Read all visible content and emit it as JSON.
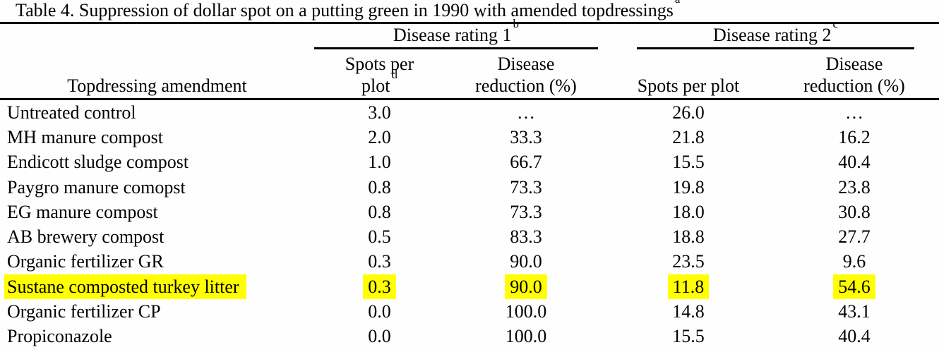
{
  "title": {
    "text": "Table 4. Suppression of dollar spot on a putting green in 1990 with amended topdressings",
    "footnote_mark": "a"
  },
  "table": {
    "groups": [
      {
        "label": "Disease rating 1",
        "footnote_mark": "b"
      },
      {
        "label": "Disease rating 2",
        "footnote_mark": "c"
      }
    ],
    "headers": {
      "amendment": "Topdressing amendment",
      "spots1_line1": "Spots per",
      "spots1_line2": "plot",
      "spots1_footnote_mark": "d",
      "reduction1_line1": "Disease",
      "reduction1_line2": "reduction (%)",
      "spots2": "Spots per plot",
      "reduction2_line1": "Disease",
      "reduction2_line2": "reduction (%)"
    },
    "rows": [
      {
        "amendment": "Untreated control",
        "spots1": "3.0",
        "reduction1": "…",
        "spots2": "26.0",
        "reduction2": "…",
        "highlighted": false
      },
      {
        "amendment": "MH manure compost",
        "spots1": "2.0",
        "reduction1": "33.3",
        "spots2": "21.8",
        "reduction2": "16.2",
        "highlighted": false
      },
      {
        "amendment": "Endicott sludge compost",
        "spots1": "1.0",
        "reduction1": "66.7",
        "spots2": "15.5",
        "reduction2": "40.4",
        "highlighted": false
      },
      {
        "amendment": "Paygro manure comopst",
        "spots1": "0.8",
        "reduction1": "73.3",
        "spots2": "19.8",
        "reduction2": "23.8",
        "highlighted": false
      },
      {
        "amendment": "EG manure compost",
        "spots1": "0.8",
        "reduction1": "73.3",
        "spots2": "18.0",
        "reduction2": "30.8",
        "highlighted": false
      },
      {
        "amendment": "AB brewery compost",
        "spots1": "0.5",
        "reduction1": "83.3",
        "spots2": "18.8",
        "reduction2": "27.7",
        "highlighted": false
      },
      {
        "amendment": "Organic fertilizer GR",
        "spots1": "0.3",
        "reduction1": "90.0",
        "spots2": "23.5",
        "reduction2": "9.6",
        "highlighted": false
      },
      {
        "amendment": "Sustane composted turkey litter",
        "spots1": "0.3",
        "reduction1": "90.0",
        "spots2": "11.8",
        "reduction2": "54.6",
        "highlighted": true
      },
      {
        "amendment": "Organic fertilizer CP",
        "spots1": "0.0",
        "reduction1": "100.0",
        "spots2": "14.8",
        "reduction2": "43.1",
        "highlighted": false
      },
      {
        "amendment": "Propiconazole",
        "spots1": "0.0",
        "reduction1": "100.0",
        "spots2": "15.5",
        "reduction2": "40.4",
        "highlighted": false
      }
    ]
  },
  "colors": {
    "highlight": "#ffff00",
    "text": "#000000",
    "rule": "#000000",
    "background": "#fefefe"
  }
}
